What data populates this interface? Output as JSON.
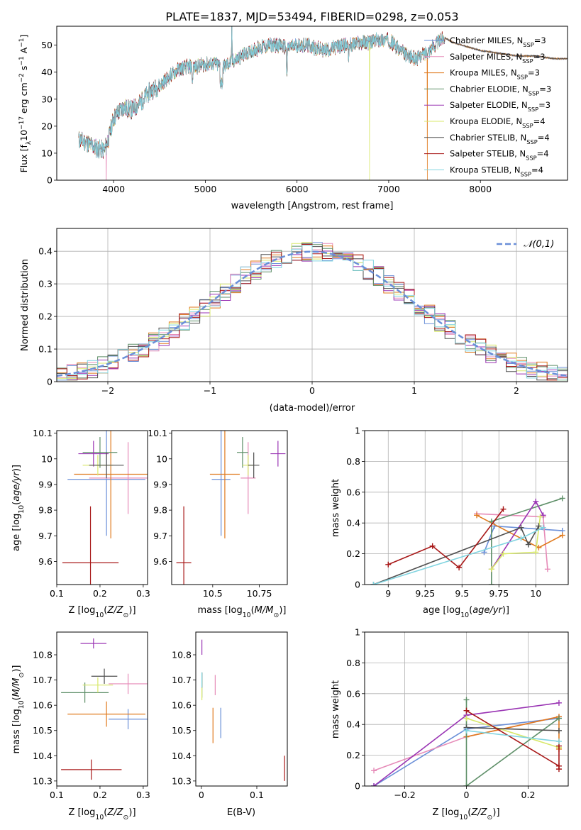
{
  "figure_title": "PLATE=1837, MJD=53494, FIBERID=0298, z=0.053",
  "palette": {
    "Chabrier MILES": "#6a8fd8",
    "Salpeter MILES": "#e68bb8",
    "Kroupa MILES": "#e07a1e",
    "Chabrier ELODIE": "#5e8f68",
    "Salpeter ELODIE": "#9a35b4",
    "Kroupa ELODIE": "#d8e86a",
    "Chabrier STELIB": "#505050",
    "Salpeter STELIB": "#a81818",
    "Kroupa STELIB": "#80d4e0",
    "gaussian": "#6a8fd8"
  },
  "chart_data": [
    {
      "id": "spectrum",
      "type": "line",
      "xlabel": "wavelength [Angstrom, rest frame]",
      "ylabel": "Flux [f_λ10^-17 erg cm^-2 s^-1 A^-1]",
      "xlim": [
        3380,
        8950
      ],
      "ylim": [
        0,
        57
      ],
      "xticks": [
        4000,
        5000,
        6000,
        7000,
        8000
      ],
      "yticks": [
        0,
        10,
        20,
        30,
        40,
        50
      ],
      "grid": false,
      "legend_position": "upper-right",
      "legend": [
        "Chabrier MILES, N_SSP=3",
        "Salpeter MILES, N_SSP=3",
        "Kroupa MILES, N_SSP=3",
        "Chabrier ELODIE, N_SSP=3",
        "Salpeter ELODIE, N_SSP=3",
        "Kroupa ELODIE, N_SSP=4",
        "Chabrier STELIB, N_SSP=4",
        "Salpeter STELIB, N_SSP=4",
        "Kroupa STELIB, N_SSP=4"
      ],
      "continuum": {
        "x": [
          3620,
          3700,
          3800,
          3900,
          3950,
          4000,
          4100,
          4200,
          4300,
          4400,
          4500,
          4600,
          4700,
          4800,
          4900,
          5000,
          5100,
          5200,
          5300,
          5400,
          5500,
          5600,
          5700,
          5800,
          5900,
          6000,
          6100,
          6200,
          6300,
          6400,
          6500,
          6600,
          6700,
          6800,
          6900,
          7000,
          7100,
          7200,
          7300,
          7400,
          7500,
          7600,
          7700,
          7800,
          7900,
          8000,
          8200,
          8400,
          8600,
          8800,
          8950
        ],
        "y": [
          15,
          14,
          12,
          11,
          16,
          23,
          27,
          26,
          29,
          33,
          35,
          38,
          41,
          42,
          42,
          43,
          43,
          42,
          44,
          46,
          48,
          49,
          50,
          50,
          49,
          50,
          50,
          49,
          48,
          49,
          50,
          50,
          51,
          51,
          52,
          52,
          49,
          46,
          45,
          47,
          50,
          53,
          51,
          50,
          49,
          48,
          47,
          46,
          46,
          45,
          45
        ]
      },
      "dropouts": [
        {
          "series": "Salpeter MILES",
          "x": 3920
        },
        {
          "series": "Kroupa ELODIE",
          "x": 6790
        },
        {
          "series": "Kroupa MILES",
          "x": 7420
        }
      ]
    },
    {
      "id": "residuals",
      "type": "line",
      "xlabel": "(data-model)/error",
      "ylabel": "Normed distribution",
      "xlim": [
        -2.5,
        2.5
      ],
      "ylim": [
        0,
        0.47
      ],
      "xticks": [
        -2,
        -1,
        0,
        1,
        2
      ],
      "yticks": [
        0.0,
        0.1,
        0.2,
        0.3,
        0.4
      ],
      "grid": true,
      "legend_position": "upper-right",
      "legend": [
        "𝒩(0,1)"
      ],
      "bin_width": 0.1
    },
    {
      "id": "age_vs_Z",
      "type": "scatter",
      "xlabel": "Z [log10(Z/Z⊙)]",
      "ylabel": "age [log10(age/yr)]",
      "xlim": [
        0.1,
        0.31
      ],
      "ylim": [
        9.51,
        10.11
      ],
      "xticks": [
        0.1,
        0.2,
        0.3
      ],
      "yticks": [
        9.6,
        9.7,
        9.8,
        9.9,
        10.0,
        10.1
      ],
      "points": [
        {
          "series": "Chabrier MILES",
          "x": 0.215,
          "y": 9.92,
          "xerr": 0.09,
          "yerr": 0.22
        },
        {
          "series": "Salpeter MILES",
          "x": 0.265,
          "y": 9.925,
          "xerr": 0.09,
          "yerr": 0.14
        },
        {
          "series": "Kroupa MILES",
          "x": 0.225,
          "y": 9.94,
          "xerr": 0.085,
          "yerr": 0.25
        },
        {
          "series": "Chabrier ELODIE",
          "x": 0.2,
          "y": 10.025,
          "xerr": 0.04,
          "yerr": 0.06
        },
        {
          "series": "Salpeter ELODIE",
          "x": 0.185,
          "y": 10.02,
          "xerr": 0.035,
          "yerr": 0.05
        },
        {
          "series": "Kroupa ELODIE",
          "x": 0.195,
          "y": 9.975,
          "xerr": 0.035,
          "yerr": 0.04
        },
        {
          "series": "Chabrier STELIB",
          "x": 0.215,
          "y": 9.975,
          "xerr": 0.04,
          "yerr": 0.05
        },
        {
          "series": "Salpeter STELIB",
          "x": 0.178,
          "y": 9.595,
          "xerr": 0.065,
          "yerr": 0.22
        }
      ]
    },
    {
      "id": "age_vs_mass",
      "type": "scatter",
      "xlabel": "mass [log10(M/M⊙)]",
      "ylabel": "",
      "xlim": [
        10.28,
        10.9
      ],
      "ylim": [
        9.51,
        10.11
      ],
      "xticks": [
        10.5,
        10.75
      ],
      "yticks": [
        9.6,
        9.7,
        9.8,
        9.9,
        10.0,
        10.1
      ],
      "points": [
        {
          "series": "Chabrier MILES",
          "x": 10.545,
          "y": 9.92,
          "xerr": 0.05,
          "yerr": 0.22
        },
        {
          "series": "Salpeter MILES",
          "x": 10.69,
          "y": 9.925,
          "xerr": 0.04,
          "yerr": 0.14
        },
        {
          "series": "Kroupa MILES",
          "x": 10.565,
          "y": 9.94,
          "xerr": 0.08,
          "yerr": 0.25
        },
        {
          "series": "Chabrier ELODIE",
          "x": 10.66,
          "y": 10.025,
          "xerr": 0.03,
          "yerr": 0.06
        },
        {
          "series": "Salpeter ELODIE",
          "x": 10.85,
          "y": 10.02,
          "xerr": 0.04,
          "yerr": 0.05
        },
        {
          "series": "Kroupa ELODIE",
          "x": 10.69,
          "y": 9.975,
          "xerr": 0.03,
          "yerr": 0.04
        },
        {
          "series": "Chabrier STELIB",
          "x": 10.72,
          "y": 9.975,
          "xerr": 0.03,
          "yerr": 0.05
        },
        {
          "series": "Salpeter STELIB",
          "x": 10.345,
          "y": 9.595,
          "xerr": 0.04,
          "yerr": 0.22
        }
      ]
    },
    {
      "id": "weight_vs_age",
      "type": "line",
      "xlabel": "age [log10(age/yr)]",
      "ylabel": "mass weight",
      "xlim": [
        8.84,
        10.22
      ],
      "ylim": [
        0,
        1.0
      ],
      "xticks": [
        9.0,
        9.25,
        9.5,
        9.75,
        10.0
      ],
      "yticks": [
        0.0,
        0.2,
        0.4,
        0.6,
        0.8,
        1.0
      ],
      "grid": true,
      "series": [
        {
          "name": "Chabrier MILES",
          "points": [
            [
              9.65,
              0.21
            ],
            [
              9.72,
              0.38
            ],
            [
              10.18,
              0.35
            ]
          ]
        },
        {
          "name": "Salpeter MILES",
          "points": [
            [
              9.6,
              0.46
            ],
            [
              10.05,
              0.44
            ],
            [
              10.08,
              0.1
            ]
          ]
        },
        {
          "name": "Kroupa MILES",
          "points": [
            [
              9.6,
              0.45
            ],
            [
              10.02,
              0.24
            ],
            [
              10.18,
              0.32
            ]
          ]
        },
        {
          "name": "Chabrier ELODIE",
          "points": [
            [
              9.7,
              0.0
            ],
            [
              9.7,
              0.41
            ],
            [
              10.18,
              0.56
            ]
          ]
        },
        {
          "name": "Salpeter ELODIE",
          "points": [
            [
              9.7,
              0.1
            ],
            [
              10.0,
              0.54
            ],
            [
              10.05,
              0.45
            ]
          ]
        },
        {
          "name": "Kroupa ELODIE",
          "points": [
            [
              9.7,
              0.1
            ],
            [
              9.78,
              0.2
            ],
            [
              10.0,
              0.21
            ],
            [
              10.03,
              0.44
            ]
          ]
        },
        {
          "name": "Chabrier STELIB",
          "points": [
            [
              8.9,
              0.0
            ],
            [
              9.9,
              0.37
            ],
            [
              9.95,
              0.26
            ],
            [
              10.02,
              0.38
            ]
          ]
        },
        {
          "name": "Salpeter STELIB",
          "points": [
            [
              9.0,
              0.13
            ],
            [
              9.3,
              0.25
            ],
            [
              9.48,
              0.11
            ],
            [
              9.78,
              0.49
            ]
          ]
        },
        {
          "name": "Kroupa STELIB",
          "points": [
            [
              8.9,
              0.0
            ],
            [
              9.9,
              0.3
            ],
            [
              10.05,
              0.37
            ]
          ]
        }
      ]
    },
    {
      "id": "mass_vs_Z",
      "type": "scatter",
      "xlabel": "Z [log10(Z/Z⊙)]",
      "ylabel": "mass [log10(M/M⊙)]",
      "xlim": [
        0.1,
        0.31
      ],
      "ylim": [
        10.28,
        10.89
      ],
      "xticks": [
        0.1,
        0.2,
        0.3
      ],
      "yticks": [
        10.3,
        10.4,
        10.5,
        10.6,
        10.7,
        10.8
      ],
      "points": [
        {
          "series": "Chabrier MILES",
          "x": 0.265,
          "y": 10.545,
          "xerr": 0.045,
          "yerr": 0.04
        },
        {
          "series": "Salpeter MILES",
          "x": 0.265,
          "y": 10.685,
          "xerr": 0.045,
          "yerr": 0.04
        },
        {
          "series": "Kroupa MILES",
          "x": 0.215,
          "y": 10.565,
          "xerr": 0.09,
          "yerr": 0.05
        },
        {
          "series": "Chabrier ELODIE",
          "x": 0.165,
          "y": 10.65,
          "xerr": 0.055,
          "yerr": 0.04
        },
        {
          "series": "Salpeter ELODIE",
          "x": 0.185,
          "y": 10.845,
          "xerr": 0.03,
          "yerr": 0.02
        },
        {
          "series": "Kroupa ELODIE",
          "x": 0.195,
          "y": 10.68,
          "xerr": 0.035,
          "yerr": 0.03
        },
        {
          "series": "Chabrier STELIB",
          "x": 0.21,
          "y": 10.715,
          "xerr": 0.03,
          "yerr": 0.03
        },
        {
          "series": "Salpeter STELIB",
          "x": 0.18,
          "y": 10.345,
          "xerr": 0.07,
          "yerr": 0.04
        }
      ]
    },
    {
      "id": "mass_vs_EBV",
      "type": "scatter",
      "xlabel": "E(B-V)",
      "ylabel": "",
      "xlim": [
        -0.01,
        0.155
      ],
      "ylim": [
        10.28,
        10.89
      ],
      "xticks": [
        0.0,
        0.1
      ],
      "yticks": [
        10.3,
        10.4,
        10.5,
        10.6,
        10.7,
        10.8
      ],
      "points": [
        {
          "series": "Chabrier MILES",
          "x": 0.035,
          "y": 10.53,
          "xerr": 0,
          "yerr": 0.06
        },
        {
          "series": "Salpeter MILES",
          "x": 0.025,
          "y": 10.68,
          "xerr": 0,
          "yerr": 0.04
        },
        {
          "series": "Kroupa MILES",
          "x": 0.021,
          "y": 10.52,
          "xerr": 0,
          "yerr": 0.07
        },
        {
          "series": "Chabrier ELODIE",
          "x": 0.001,
          "y": 10.68,
          "xerr": 0,
          "yerr": 0.05
        },
        {
          "series": "Salpeter ELODIE",
          "x": 0.001,
          "y": 10.83,
          "xerr": 0,
          "yerr": 0.03
        },
        {
          "series": "Kroupa ELODIE",
          "x": 0.001,
          "y": 10.66,
          "xerr": 0,
          "yerr": 0.04
        },
        {
          "series": "Chabrier STELIB",
          "x": 0.001,
          "y": 10.7,
          "xerr": 0,
          "yerr": 0.03
        },
        {
          "series": "Salpeter STELIB",
          "x": 0.15,
          "y": 10.35,
          "xerr": 0,
          "yerr": 0.05
        },
        {
          "series": "Kroupa STELIB",
          "x": 0.001,
          "y": 10.7,
          "xerr": 0,
          "yerr": 0.03
        }
      ]
    },
    {
      "id": "weight_vs_Z",
      "type": "line",
      "xlabel": "Z [log10(Z/Z⊙)]",
      "ylabel": "mass weight",
      "xlim": [
        -0.33,
        0.33
      ],
      "ylim": [
        0,
        1.0
      ],
      "xticks": [
        -0.2,
        0.0,
        0.2
      ],
      "yticks": [
        0.0,
        0.2,
        0.4,
        0.6,
        0.8,
        1.0
      ],
      "grid": true,
      "series": [
        {
          "name": "Chabrier MILES",
          "points": [
            [
              -0.3,
              0.0
            ],
            [
              0.0,
              0.37
            ],
            [
              0.3,
              0.44
            ]
          ]
        },
        {
          "name": "Salpeter MILES",
          "points": [
            [
              -0.3,
              0.1
            ],
            [
              0.0,
              0.32
            ],
            [
              0.3,
              0.45
            ]
          ]
        },
        {
          "name": "Kroupa MILES",
          "points": [
            [
              0.0,
              0.32
            ],
            [
              0.3,
              0.45
            ],
            [
              0.3,
              0.24
            ]
          ]
        },
        {
          "name": "Chabrier ELODIE",
          "points": [
            [
              0.0,
              0.56
            ],
            [
              0.0,
              0.0
            ],
            [
              0.3,
              0.44
            ]
          ]
        },
        {
          "name": "Salpeter ELODIE",
          "points": [
            [
              -0.3,
              0.0
            ],
            [
              0.0,
              0.46
            ],
            [
              0.3,
              0.54
            ]
          ]
        },
        {
          "name": "Kroupa ELODIE",
          "points": [
            [
              0.0,
              0.44
            ],
            [
              0.3,
              0.25
            ]
          ]
        },
        {
          "name": "Chabrier STELIB",
          "points": [
            [
              0.0,
              0.38
            ],
            [
              0.3,
              0.36
            ]
          ]
        },
        {
          "name": "Salpeter STELIB",
          "points": [
            [
              0.0,
              0.49
            ],
            [
              0.3,
              0.13
            ],
            [
              0.3,
              0.26
            ],
            [
              0.3,
              0.11
            ]
          ]
        },
        {
          "name": "Kroupa STELIB",
          "points": [
            [
              0.0,
              0.36
            ],
            [
              0.3,
              0.29
            ]
          ]
        }
      ]
    }
  ]
}
